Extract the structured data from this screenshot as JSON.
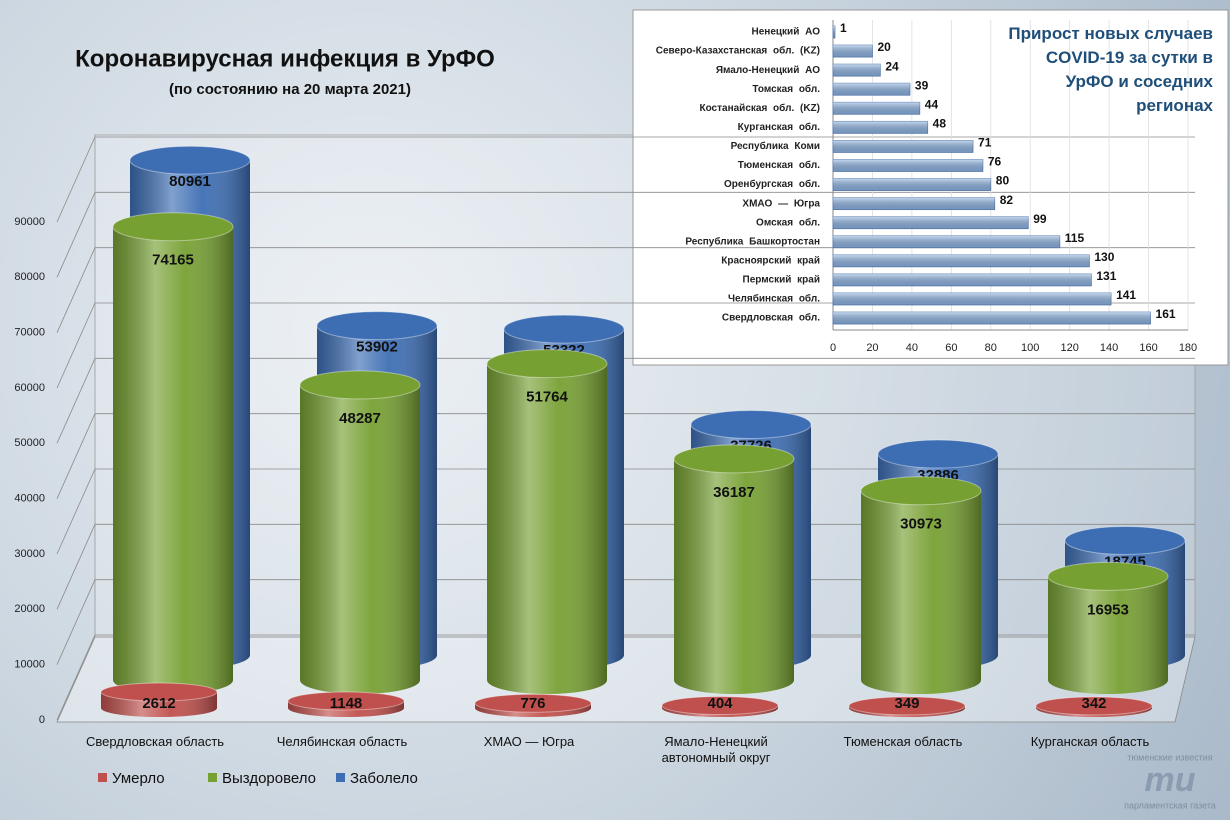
{
  "chart_data": [
    {
      "type": "bar",
      "title": "Коронавирусная инфекция в УрФО",
      "subtitle": "(по состоянию на 20 марта 2021)",
      "categories": [
        "Свердловская область",
        "Челябинская область",
        "ХМАО — Югра",
        "Ямало-Ненецкий автономный округ",
        "Тюменская область",
        "Курганская область"
      ],
      "series": [
        {
          "name": "Умерло",
          "color": "#c0504d",
          "values": [
            2612,
            1148,
            776,
            404,
            349,
            342
          ]
        },
        {
          "name": "Выздоровело",
          "color": "#77a033",
          "values": [
            74165,
            48287,
            51764,
            36187,
            30973,
            16953
          ]
        },
        {
          "name": "Заболело",
          "color": "#3d6eb4",
          "values": [
            80961,
            53902,
            53322,
            37726,
            32886,
            18745
          ]
        }
      ],
      "ylim": [
        0,
        90000
      ],
      "yticks": [
        0,
        10000,
        20000,
        30000,
        40000,
        50000,
        60000,
        70000,
        80000,
        90000
      ],
      "grid": true,
      "legend": "bottom-left"
    },
    {
      "type": "hbar",
      "title": "Прирост новых случаев COVID-19 за сутки в УрФО и соседних регионах",
      "categories": [
        "Ненецкий АО",
        "Северо-Казахстанская обл. (KZ)",
        "Ямало-Ненецкий АО",
        "Томская обл.",
        "Костанайская обл. (KZ)",
        "Курганская обл.",
        "Республика Коми",
        "Тюменская обл.",
        "Оренбургская обл.",
        "ХМАО — Югра",
        "Омская обл.",
        "Республика Башкортостан",
        "Красноярский край",
        "Пермский край",
        "Челябинская обл.",
        "Свердловская обл."
      ],
      "values": [
        1,
        20,
        24,
        39,
        44,
        48,
        71,
        76,
        80,
        82,
        99,
        115,
        130,
        131,
        141,
        161
      ],
      "color": "#8db3e2",
      "xlim": [
        0,
        180
      ],
      "xticks": [
        0,
        20,
        40,
        60,
        80,
        100,
        120,
        140,
        160,
        180
      ],
      "grid": true
    }
  ],
  "logo": {
    "top": "тюменские известия",
    "mark": "ти",
    "bottom": "парламентская газета"
  }
}
